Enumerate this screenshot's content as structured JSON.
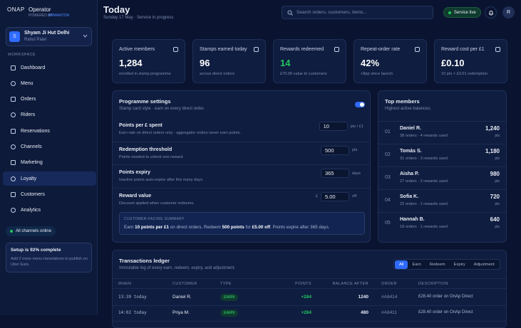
{
  "sidebar": {
    "brand": {
      "name": "ONAP",
      "product": "Operator",
      "powered_by": "POWERED BY",
      "partner": "ARMAMTON"
    },
    "account": {
      "initial": "S",
      "name": "Shyam Ji Hut Delhi",
      "user": "Rahul Patel"
    },
    "section": "WORKSPACE",
    "nav": [
      {
        "label": "Dashboard"
      },
      {
        "label": "Menu"
      },
      {
        "label": "Orders"
      },
      {
        "label": "Riders"
      },
      {
        "label": "Reservations"
      },
      {
        "label": "Channels"
      },
      {
        "label": "Marketing"
      },
      {
        "label": "Loyalty",
        "active": true
      },
      {
        "label": "Customers"
      },
      {
        "label": "Analytics"
      }
    ],
    "status": "All channels online",
    "setup": {
      "title": "Setup is 92% complete",
      "text": "Add 2 more menu translations to publish on Uber Eats."
    }
  },
  "header": {
    "title": "Today",
    "subtitle": "Sunday 17 May · Service in progress",
    "search_placeholder": "Search orders, customers, items...",
    "status": "Service live",
    "avatar": "R"
  },
  "stats": [
    {
      "label": "Active members",
      "value": "1,284",
      "note": "enrolled in stamp programme"
    },
    {
      "label": "Stamps earned today",
      "value": "96",
      "note": "across direct orders"
    },
    {
      "label": "Rewards redeemed",
      "value": "14",
      "note": "£70.00 value to customers",
      "highlight": true
    },
    {
      "label": "Repeat-order rate",
      "value": "42%",
      "note": "+8pp since launch"
    },
    {
      "label": "Reward cost per £1",
      "value": "£0.10",
      "note": "10 pts × £0.01 redemption"
    }
  ],
  "settings": {
    "title": "Programme settings",
    "subtitle": "Stamp card style · earn on every direct order.",
    "enabled": true,
    "rows": [
      {
        "label": "Points per £ spent",
        "hint": "Earn rate on direct orders only · aggregator orders never earn points.",
        "value": "10",
        "unit": "pts / £1"
      },
      {
        "label": "Redemption threshold",
        "hint": "Points needed to unlock one reward.",
        "value": "500",
        "unit": "pts"
      },
      {
        "label": "Points expiry",
        "hint": "Inactive points auto-expire after this many days.",
        "value": "365",
        "unit": "days"
      },
      {
        "label": "Reward value",
        "hint": "Discount applied when customer redeems.",
        "prefix": "£",
        "value": "5.00",
        "unit": "off"
      }
    ],
    "summary": {
      "label": "CUSTOMER-FACING SUMMARY",
      "parts": [
        {
          "text": "Earn "
        },
        {
          "text": "10 points per £1",
          "bold": true
        },
        {
          "text": " on direct orders. Redeem "
        },
        {
          "text": "500 points",
          "bold": true
        },
        {
          "text": " for "
        },
        {
          "text": "£5.00 off",
          "bold": true
        },
        {
          "text": ". Points expire after 365 days."
        }
      ]
    }
  },
  "members": {
    "title": "Top members",
    "subtitle": "Highest active balances.",
    "unit": "pts",
    "rows": [
      {
        "rank": "01",
        "name": "Daniel R.",
        "detail": "38 orders · 4 rewards used",
        "points": "1,240"
      },
      {
        "rank": "02",
        "name": "Tomás S.",
        "detail": "31 orders · 3 rewards used",
        "points": "1,180"
      },
      {
        "rank": "03",
        "name": "Aisha P.",
        "detail": "27 orders · 2 rewards used",
        "points": "980"
      },
      {
        "rank": "04",
        "name": "Sofia K.",
        "detail": "22 orders · 1 rewards used",
        "points": "720"
      },
      {
        "rank": "05",
        "name": "Hannah B.",
        "detail": "18 orders · 1 rewards used",
        "points": "640"
      }
    ]
  },
  "ledger": {
    "title": "Transactions ledger",
    "subtitle": "Immutable log of every earn, redeem, expiry, and adjustment.",
    "tabs": [
      {
        "label": "All",
        "active": true
      },
      {
        "label": "Earn"
      },
      {
        "label": "Redeem"
      },
      {
        "label": "Expiry"
      },
      {
        "label": "Adjustment"
      }
    ],
    "columns": [
      "WHEN",
      "CUSTOMER",
      "TYPE",
      "POINTS",
      "BALANCE AFTER",
      "ORDER",
      "DESCRIPTION"
    ],
    "rows": [
      [
        "13:39 today",
        "Daniel R.",
        "EARN",
        "+284",
        "1240",
        "#A8414",
        "£28.40 order on OnAp Direct"
      ],
      [
        "14:02 today",
        "Priya M.",
        "EARN",
        "+284",
        "480",
        "#A8411",
        "£28.40 order on OnAp Direct"
      ]
    ]
  }
}
